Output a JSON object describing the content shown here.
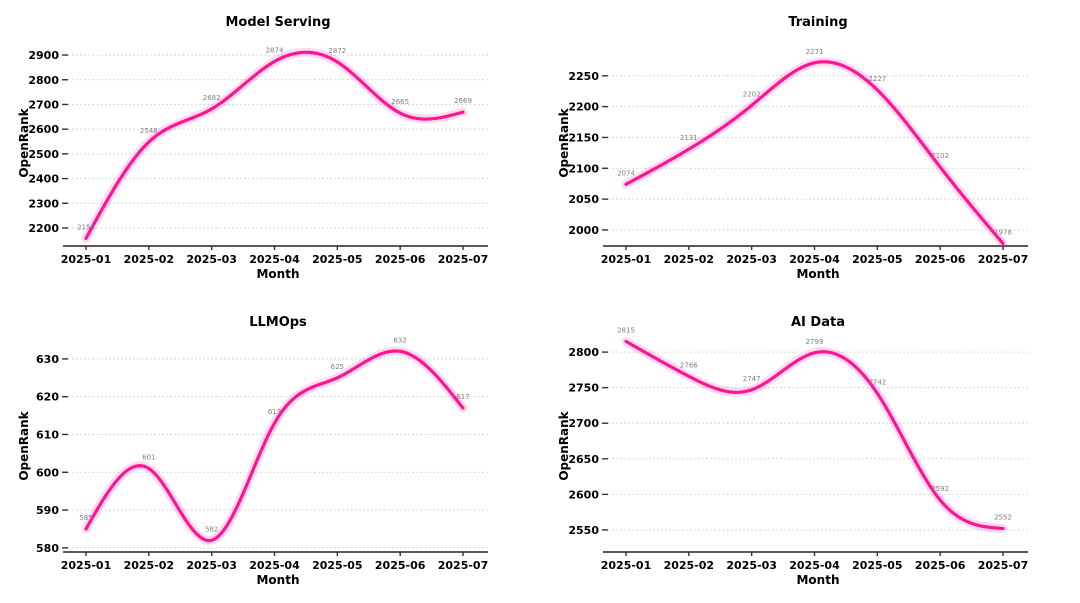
{
  "figure": {
    "background": "#ffffff",
    "line_color": "#ff1493",
    "line_glow_color": "rgba(255,20,147,0.16)",
    "grid_color": "#cccccc",
    "axis_color": "#595959",
    "tick_mark_color": "#333333",
    "text_color": "#000000",
    "point_label_color": "#7f7f7f"
  },
  "chart_data": [
    {
      "type": "line",
      "title": "Model Serving",
      "xlabel": "Month",
      "ylabel": "OpenRank",
      "grid": true,
      "legend": "none",
      "x": [
        "2025-01",
        "2025-02",
        "2025-03",
        "2025-04",
        "2025-05",
        "2025-06",
        "2025-07"
      ],
      "values": [
        2158,
        2548,
        2682,
        2874,
        2872,
        2665,
        2669
      ],
      "point_labels": [
        "2158",
        "2548",
        "2682",
        "2874",
        "2872",
        "2665",
        "2669"
      ],
      "yticks": [
        2200,
        2300,
        2400,
        2500,
        2600,
        2700,
        2800,
        2900
      ],
      "ylim": [
        2127,
        2961
      ]
    },
    {
      "type": "line",
      "title": "Training",
      "xlabel": "Month",
      "ylabel": "OpenRank",
      "grid": true,
      "legend": "none",
      "x": [
        "2025-01",
        "2025-02",
        "2025-03",
        "2025-04",
        "2025-05",
        "2025-06",
        "2025-07"
      ],
      "values": [
        2074,
        2131,
        2202,
        2271,
        2227,
        2102,
        1978
      ],
      "point_labels": [
        "2074",
        "2131",
        "2202",
        "2271",
        "2227",
        "2102",
        "1978"
      ],
      "yticks": [
        2000,
        2050,
        2100,
        2150,
        2200,
        2250
      ],
      "ylim": [
        1974,
        2308
      ]
    },
    {
      "type": "line",
      "title": "LLMOps",
      "xlabel": "Month",
      "ylabel": "OpenRank",
      "grid": true,
      "legend": "none",
      "x": [
        "2025-01",
        "2025-02",
        "2025-03",
        "2025-04",
        "2025-05",
        "2025-06",
        "2025-07"
      ],
      "values": [
        585,
        601,
        582,
        613,
        625,
        632,
        617
      ],
      "point_labels": [
        "585",
        "601",
        "582",
        "613",
        "625",
        "632",
        "617"
      ],
      "yticks": [
        580,
        590,
        600,
        610,
        620,
        630
      ],
      "ylim": [
        578.9,
        635
      ]
    },
    {
      "type": "line",
      "title": "AI Data",
      "xlabel": "Month",
      "ylabel": "OpenRank",
      "grid": true,
      "legend": "none",
      "x": [
        "2025-01",
        "2025-02",
        "2025-03",
        "2025-04",
        "2025-05",
        "2025-06",
        "2025-07"
      ],
      "values": [
        2815,
        2766,
        2747,
        2799,
        2742,
        2592,
        2552
      ],
      "point_labels": [
        "2815",
        "2766",
        "2747",
        "2799",
        "2742",
        "2592",
        "2552"
      ],
      "yticks": [
        2550,
        2600,
        2650,
        2700,
        2750,
        2800
      ],
      "ylim": [
        2519,
        2817
      ]
    }
  ]
}
